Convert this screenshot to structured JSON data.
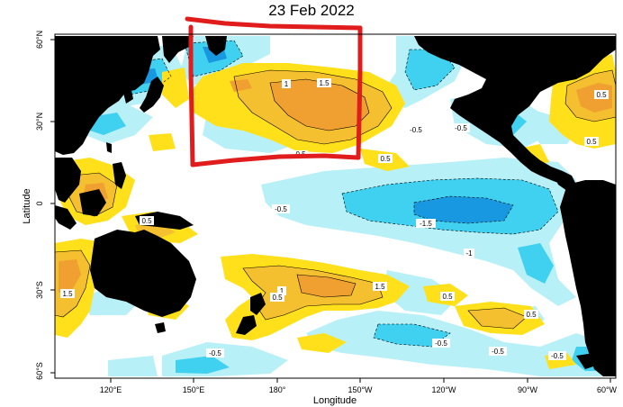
{
  "title": "23 Feb 2022",
  "axes": {
    "xlabel": "Longitude",
    "ylabel": "Latitude",
    "x_ticks": [
      "120°E",
      "150°E",
      "180°",
      "150°W",
      "120°W",
      "90°W",
      "60°W"
    ],
    "y_ticks": [
      "60°N",
      "30°N",
      "0",
      "30°S",
      "60°S"
    ]
  },
  "contour_labels": [
    "1.5",
    "1",
    "0.5",
    "-0.5",
    "-0.5",
    "-1.5",
    "-1",
    "0.5",
    "1.5",
    "1.5",
    "1",
    "0.5",
    "0.5",
    "-0.5",
    "-0.5",
    "-0.5",
    "0.5",
    "-0.5",
    "0.5",
    "0.5",
    "0.5",
    "-0.5"
  ],
  "colors": {
    "land": "#000000",
    "warm_05": "#ffe01a",
    "warm_10": "#f5c030",
    "warm_15": "#f0a030",
    "cool_05": "#b8f0f8",
    "cool_10": "#40d0f0",
    "cool_15": "#1898e0",
    "annotation": "#e01c1c",
    "frame": "#000000"
  },
  "annotation": {
    "shape": "hand-drawn rectangle",
    "description_visible": false
  }
}
